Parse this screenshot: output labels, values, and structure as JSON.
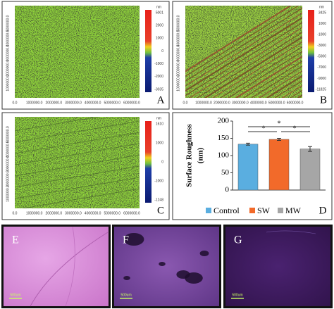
{
  "afm_ticks": [
    "0.0",
    "1000000.0",
    "2000000.0",
    "3000000.0",
    "4000000.0",
    "5000000.0",
    "6000000.0"
  ],
  "panels": [
    {
      "label": "A",
      "unit": "nm",
      "colorbar": [
        "5001",
        "2000",
        "1000",
        "0",
        "-1000",
        "-2000",
        "-3035"
      ]
    },
    {
      "label": "B",
      "unit": "nm",
      "colorbar": [
        "3425",
        "1000",
        "-1000",
        "-3000",
        "-5000",
        "-7000",
        "-9000",
        "-11825"
      ]
    },
    {
      "label": "C",
      "unit": "nm",
      "colorbar": [
        "1610",
        "1000",
        "0",
        "-1000",
        "-1248"
      ]
    },
    {
      "label": "E",
      "scale": "500um"
    },
    {
      "label": "F",
      "scale": "500um"
    },
    {
      "label": "G",
      "scale": "500um"
    }
  ],
  "chart_data": {
    "type": "bar",
    "panel_label": "D",
    "y_label": "Surface Roughness",
    "y_unit": "(nm)",
    "categories": [
      "Control",
      "SW",
      "MW"
    ],
    "values": [
      133,
      147,
      119
    ],
    "errors": [
      3,
      3,
      7
    ],
    "colors": [
      "#5aaee0",
      "#f26a2a",
      "#a6a6a6"
    ],
    "ylim": [
      0,
      200
    ],
    "yticks": [
      0,
      50,
      100,
      150,
      200
    ],
    "significance": [
      "*",
      "*",
      "*"
    ]
  }
}
